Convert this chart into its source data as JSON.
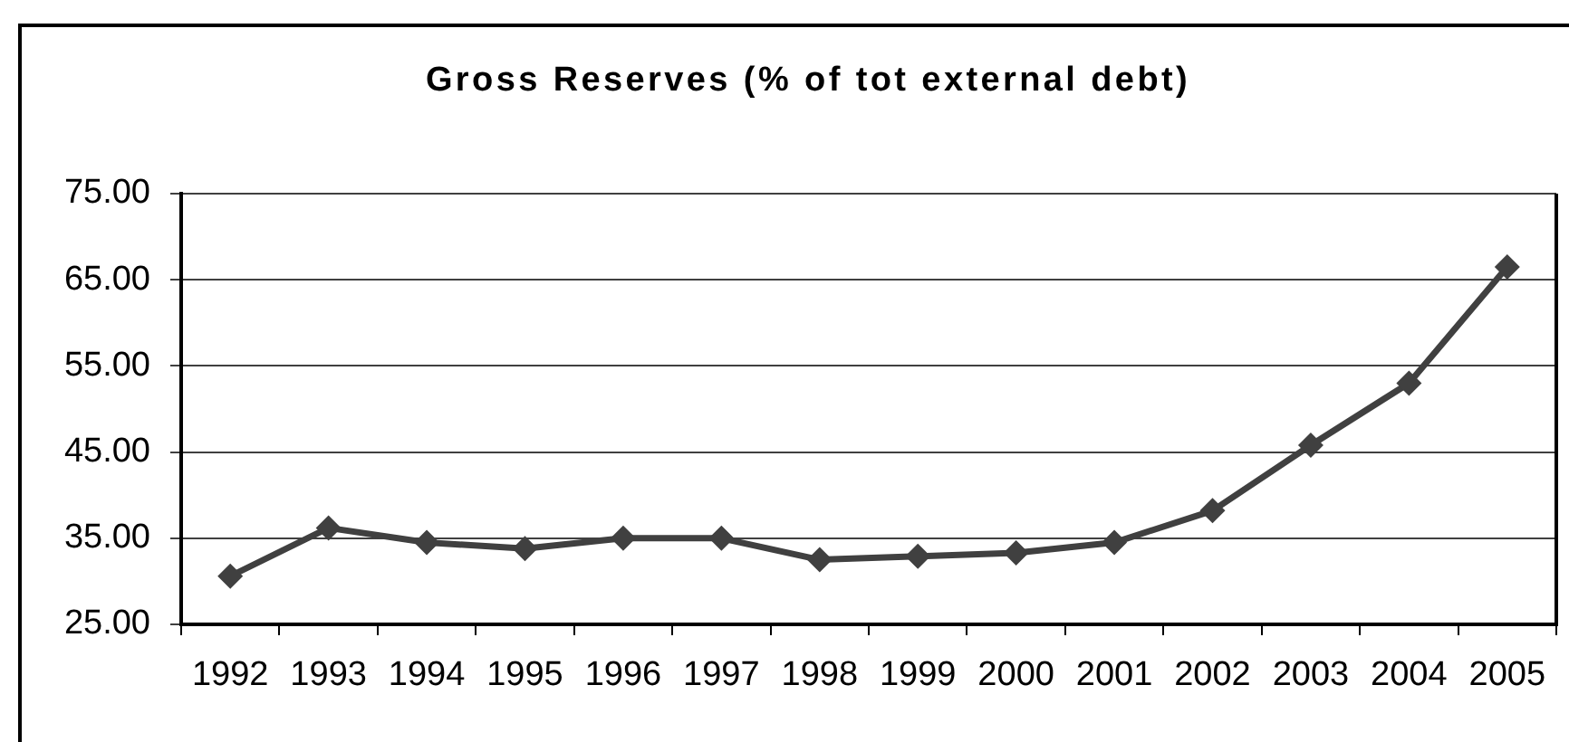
{
  "chart_data": {
    "type": "line",
    "title": "Gross Reserves (% of tot external debt)",
    "categories": [
      "1992",
      "1993",
      "1994",
      "1995",
      "1996",
      "1997",
      "1998",
      "1999",
      "2000",
      "2001",
      "2002",
      "2003",
      "2004",
      "2005"
    ],
    "values": [
      30.6,
      36.2,
      34.5,
      33.8,
      35.0,
      35.0,
      32.5,
      32.9,
      33.3,
      34.5,
      38.2,
      45.8,
      53.0,
      66.5
    ],
    "color": "#404040",
    "ylim": [
      25,
      75
    ],
    "yticks": [
      {
        "value": 25,
        "label": "25.00"
      },
      {
        "value": 35,
        "label": "35.00"
      },
      {
        "value": 45,
        "label": "45.00"
      },
      {
        "value": 55,
        "label": "55.00"
      },
      {
        "value": 65,
        "label": "65.00"
      },
      {
        "value": 75,
        "label": "75.00"
      }
    ],
    "grid": "y",
    "marker": "diamond",
    "line_style": "solid"
  }
}
